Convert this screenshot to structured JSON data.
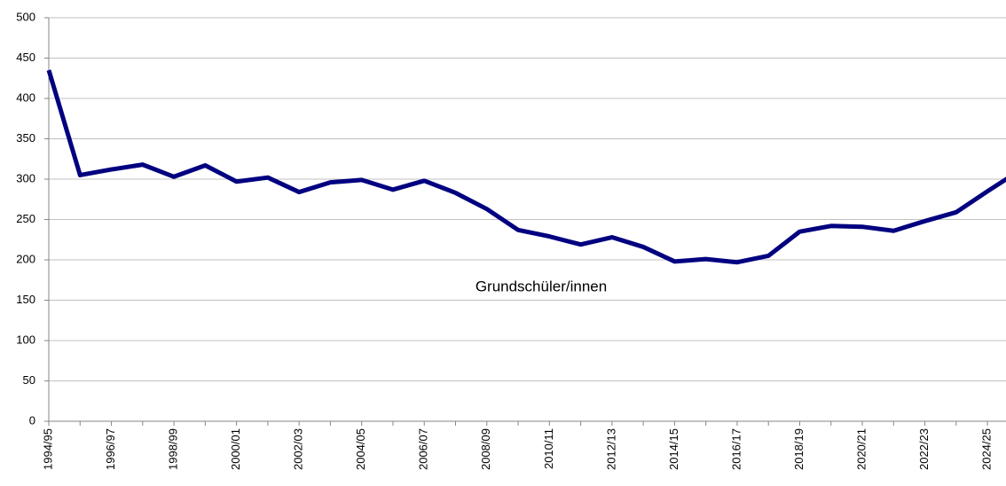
{
  "chart_data": {
    "type": "line",
    "annotation": "Grundschüler/innen",
    "categories": [
      "1994/95",
      null,
      "1996/97",
      null,
      "1998/99",
      null,
      "2000/01",
      null,
      "2002/03",
      null,
      "2004/05",
      null,
      "2006/07",
      null,
      "2008/09",
      null,
      "2010/11",
      null,
      "2012/13",
      null,
      "2014/15",
      null,
      "2016/17",
      null,
      "2018/19",
      null,
      "2020/21",
      null,
      "2022/23",
      null,
      "2024/25",
      null
    ],
    "series": [
      {
        "name": "Grundschüler/innen",
        "color": "#000080",
        "values": [
          435,
          305,
          312,
          318,
          303,
          317,
          297,
          302,
          284,
          296,
          299,
          287,
          298,
          283,
          263,
          237,
          229,
          219,
          228,
          216,
          198,
          201,
          197,
          205,
          235,
          242,
          241,
          236,
          248,
          259,
          285,
          310
        ]
      }
    ],
    "ylim": [
      0,
      500
    ],
    "yticks": [
      0,
      50,
      100,
      150,
      200,
      250,
      300,
      350,
      400,
      450,
      500
    ],
    "grid": true
  }
}
